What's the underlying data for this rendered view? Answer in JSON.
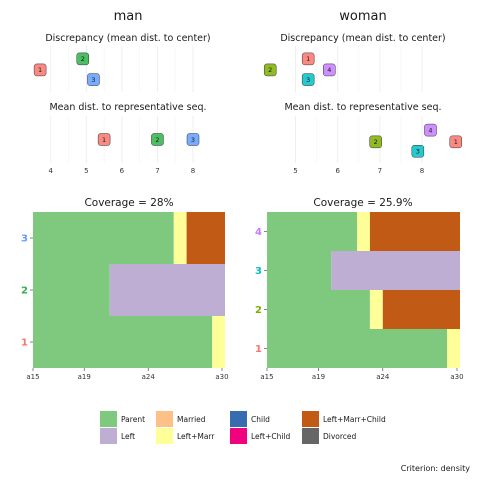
{
  "chart_data": [
    {
      "type": "scatter",
      "panel": "man",
      "strip": "man",
      "groups": [
        "1",
        "2",
        "3"
      ],
      "group_colors": {
        "1": "#f8766d",
        "2": "#2fb34a",
        "3": "#619cff"
      },
      "discrepancy": {
        "title": "Discrepancy (mean dist. to center)",
        "values": [
          3.7,
          4.9,
          5.2
        ]
      },
      "representative": {
        "title": "Mean dist. to representative seq.",
        "values": [
          5.5,
          7.0,
          8.0
        ]
      },
      "xlim": [
        3.5,
        8.9
      ],
      "xticks": [
        4,
        5,
        6,
        7,
        8
      ]
    },
    {
      "type": "scatter",
      "panel": "woman",
      "strip": "woman",
      "groups": [
        "1",
        "2",
        "3",
        "4"
      ],
      "group_colors": {
        "1": "#f8766d",
        "2": "#7cae00",
        "3": "#00bfc4",
        "4": "#c77cff"
      },
      "discrepancy": {
        "title": "Discrepancy (mean dist. to center)",
        "values": [
          5.3,
          4.4,
          5.3,
          5.8
        ]
      },
      "representative": {
        "title": "Mean dist. to representative seq.",
        "values": [
          8.8,
          6.9,
          7.9,
          8.2
        ]
      },
      "xlim": [
        4.3,
        8.9
      ],
      "xticks": [
        5,
        6,
        7,
        8
      ]
    },
    {
      "type": "bar",
      "panel": "man-coverage",
      "title": "Coverage = 28%",
      "clusters": [
        "1",
        "2",
        "3"
      ],
      "cluster_colors": {
        "1": "#f8766d",
        "2": "#2fb34a",
        "3": "#619cff"
      },
      "xlim": [
        15,
        30
      ],
      "xticks": [
        "a15",
        "a19",
        "a24",
        "a30"
      ],
      "xtick_values": [
        15,
        19,
        24,
        30
      ],
      "sequences": [
        {
          "cluster": "1",
          "spells": [
            [
              "Parent",
              15,
              29
            ],
            [
              "Left+Marr",
              29,
              30
            ]
          ]
        },
        {
          "cluster": "2",
          "spells": [
            [
              "Parent",
              15,
              21
            ],
            [
              "Left",
              21,
              30
            ]
          ]
        },
        {
          "cluster": "3",
          "spells": [
            [
              "Parent",
              15,
              26
            ],
            [
              "Left+Marr",
              26,
              27
            ],
            [
              "Left+Marr+Child",
              27,
              30
            ]
          ]
        }
      ]
    },
    {
      "type": "bar",
      "panel": "woman-coverage",
      "title": "Coverage = 25.9%",
      "clusters": [
        "1",
        "2",
        "3",
        "4"
      ],
      "cluster_colors": {
        "1": "#f8766d",
        "2": "#7cae00",
        "3": "#00bfc4",
        "4": "#c77cff"
      },
      "xlim": [
        15,
        30
      ],
      "xticks": [
        "a15",
        "a19",
        "a24",
        "a30"
      ],
      "xtick_values": [
        15,
        19,
        24,
        30
      ],
      "sequences": [
        {
          "cluster": "1",
          "spells": [
            [
              "Parent",
              15,
              29
            ],
            [
              "Left+Marr",
              29,
              30
            ]
          ]
        },
        {
          "cluster": "2",
          "spells": [
            [
              "Parent",
              15,
              23
            ],
            [
              "Left+Marr",
              23,
              24
            ],
            [
              "Left+Marr+Child",
              24,
              30
            ]
          ]
        },
        {
          "cluster": "3",
          "spells": [
            [
              "Parent",
              15,
              20
            ],
            [
              "Left",
              20,
              30
            ]
          ]
        },
        {
          "cluster": "4",
          "spells": [
            [
              "Parent",
              15,
              22
            ],
            [
              "Left+Marr",
              22,
              23
            ],
            [
              "Left+Marr+Child",
              23,
              30
            ]
          ]
        }
      ]
    }
  ],
  "legend": [
    {
      "label": "Parent",
      "color": "#7fc97f"
    },
    {
      "label": "Married",
      "color": "#fdc086"
    },
    {
      "label": "Child",
      "color": "#386cb0"
    },
    {
      "label": "Left+Marr+Child",
      "color": "#c05a14"
    },
    {
      "label": "Left",
      "color": "#beaed4"
    },
    {
      "label": "Left+Marr",
      "color": "#ffff99"
    },
    {
      "label": "Left+Child",
      "color": "#f0027f"
    },
    {
      "label": "Divorced",
      "color": "#666666"
    }
  ],
  "criterion": "Criterion: density"
}
